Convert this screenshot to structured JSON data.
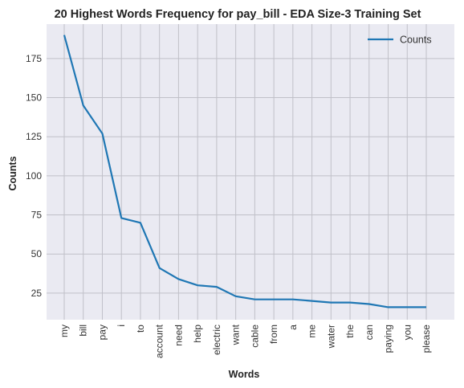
{
  "chart_data": {
    "type": "line",
    "title": "20 Highest Words Frequency for pay_bill - EDA Size-3 Training Set",
    "xlabel": "Words",
    "ylabel": "Counts",
    "categories": [
      "my",
      "bill",
      "pay",
      "i",
      "to",
      "account",
      "need",
      "help",
      "electric",
      "want",
      "cable",
      "from",
      "a",
      "me",
      "water",
      "the",
      "can",
      "paying",
      "you",
      "please"
    ],
    "series": [
      {
        "name": "Counts",
        "values": [
          190,
          145,
          127,
          73,
          70,
          41,
          34,
          30,
          29,
          23,
          21,
          21,
          21,
          20,
          19,
          19,
          18,
          16,
          16,
          16
        ],
        "color": "#1f77b4"
      }
    ],
    "yticks": [
      25,
      50,
      75,
      100,
      125,
      150,
      175
    ],
    "ylim": [
      8,
      197
    ],
    "grid": true,
    "legend_position": "top-right",
    "background_color": "#eaeaf2",
    "grid_color": "#c0c0c8"
  }
}
